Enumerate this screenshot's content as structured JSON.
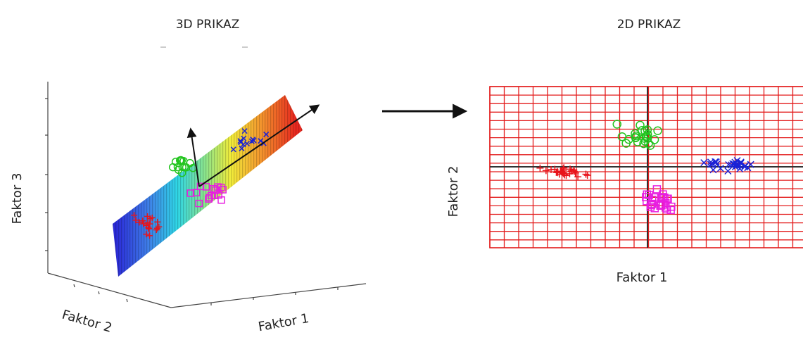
{
  "left_panel": {
    "title": "3D PRIKAZ",
    "axis_vertical": "Faktor 3",
    "axis_depth": "Faktor 2",
    "axis_horizontal": "Faktor 1"
  },
  "right_panel": {
    "title": "2D PRIKAZ",
    "axis_x": "Faktor 1",
    "axis_y": "Faktor 2"
  },
  "colors": {
    "grid": "#e31b1b",
    "axis": "#333333",
    "arrow": "#111111",
    "cluster_plus": "#e8141b",
    "cluster_circle": "#22c41e",
    "cluster_square": "#e81ee0",
    "cluster_x": "#1a22d6"
  },
  "clusters": [
    {
      "marker": "plus",
      "color_key": "cluster_plus"
    },
    {
      "marker": "circle",
      "color_key": "cluster_circle"
    },
    {
      "marker": "square",
      "color_key": "cluster_square"
    },
    {
      "marker": "x",
      "color_key": "cluster_x"
    }
  ]
}
